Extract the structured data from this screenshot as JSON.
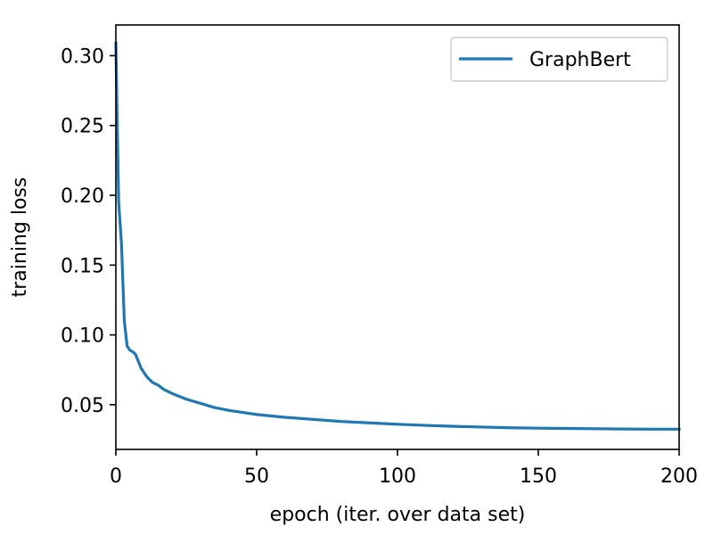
{
  "chart_data": {
    "type": "line",
    "title": "",
    "xlabel": "epoch (iter. over data set)",
    "ylabel": "training loss",
    "xlim": [
      0,
      200
    ],
    "ylim": [
      0.018,
      0.322
    ],
    "xticks": [
      0,
      50,
      100,
      150,
      200
    ],
    "xtick_labels": [
      "0",
      "50",
      "100",
      "150",
      "200"
    ],
    "yticks": [
      0.05,
      0.1,
      0.15,
      0.2,
      0.25,
      0.3
    ],
    "ytick_labels": [
      "0.05",
      "0.10",
      "0.15",
      "0.20",
      "0.25",
      "0.30"
    ],
    "grid": false,
    "legend_position": "top-right",
    "series": [
      {
        "name": "GraphBert",
        "color": "#1f77b4",
        "x": [
          0,
          0.5,
          1,
          2,
          3,
          4,
          5,
          6,
          7,
          8,
          9,
          10,
          11,
          12,
          13,
          14,
          15,
          17,
          20,
          25,
          30,
          35,
          40,
          50,
          60,
          70,
          80,
          90,
          100,
          110,
          120,
          130,
          140,
          150,
          160,
          170,
          180,
          190,
          200
        ],
        "y": [
          0.309,
          0.25,
          0.195,
          0.165,
          0.11,
          0.092,
          0.089,
          0.088,
          0.086,
          0.081,
          0.076,
          0.073,
          0.07,
          0.068,
          0.066,
          0.065,
          0.064,
          0.061,
          0.058,
          0.054,
          0.051,
          0.048,
          0.046,
          0.043,
          0.041,
          0.0395,
          0.038,
          0.037,
          0.036,
          0.0352,
          0.0345,
          0.034,
          0.0335,
          0.0332,
          0.033,
          0.0328,
          0.0326,
          0.0325,
          0.0325
        ]
      }
    ]
  }
}
